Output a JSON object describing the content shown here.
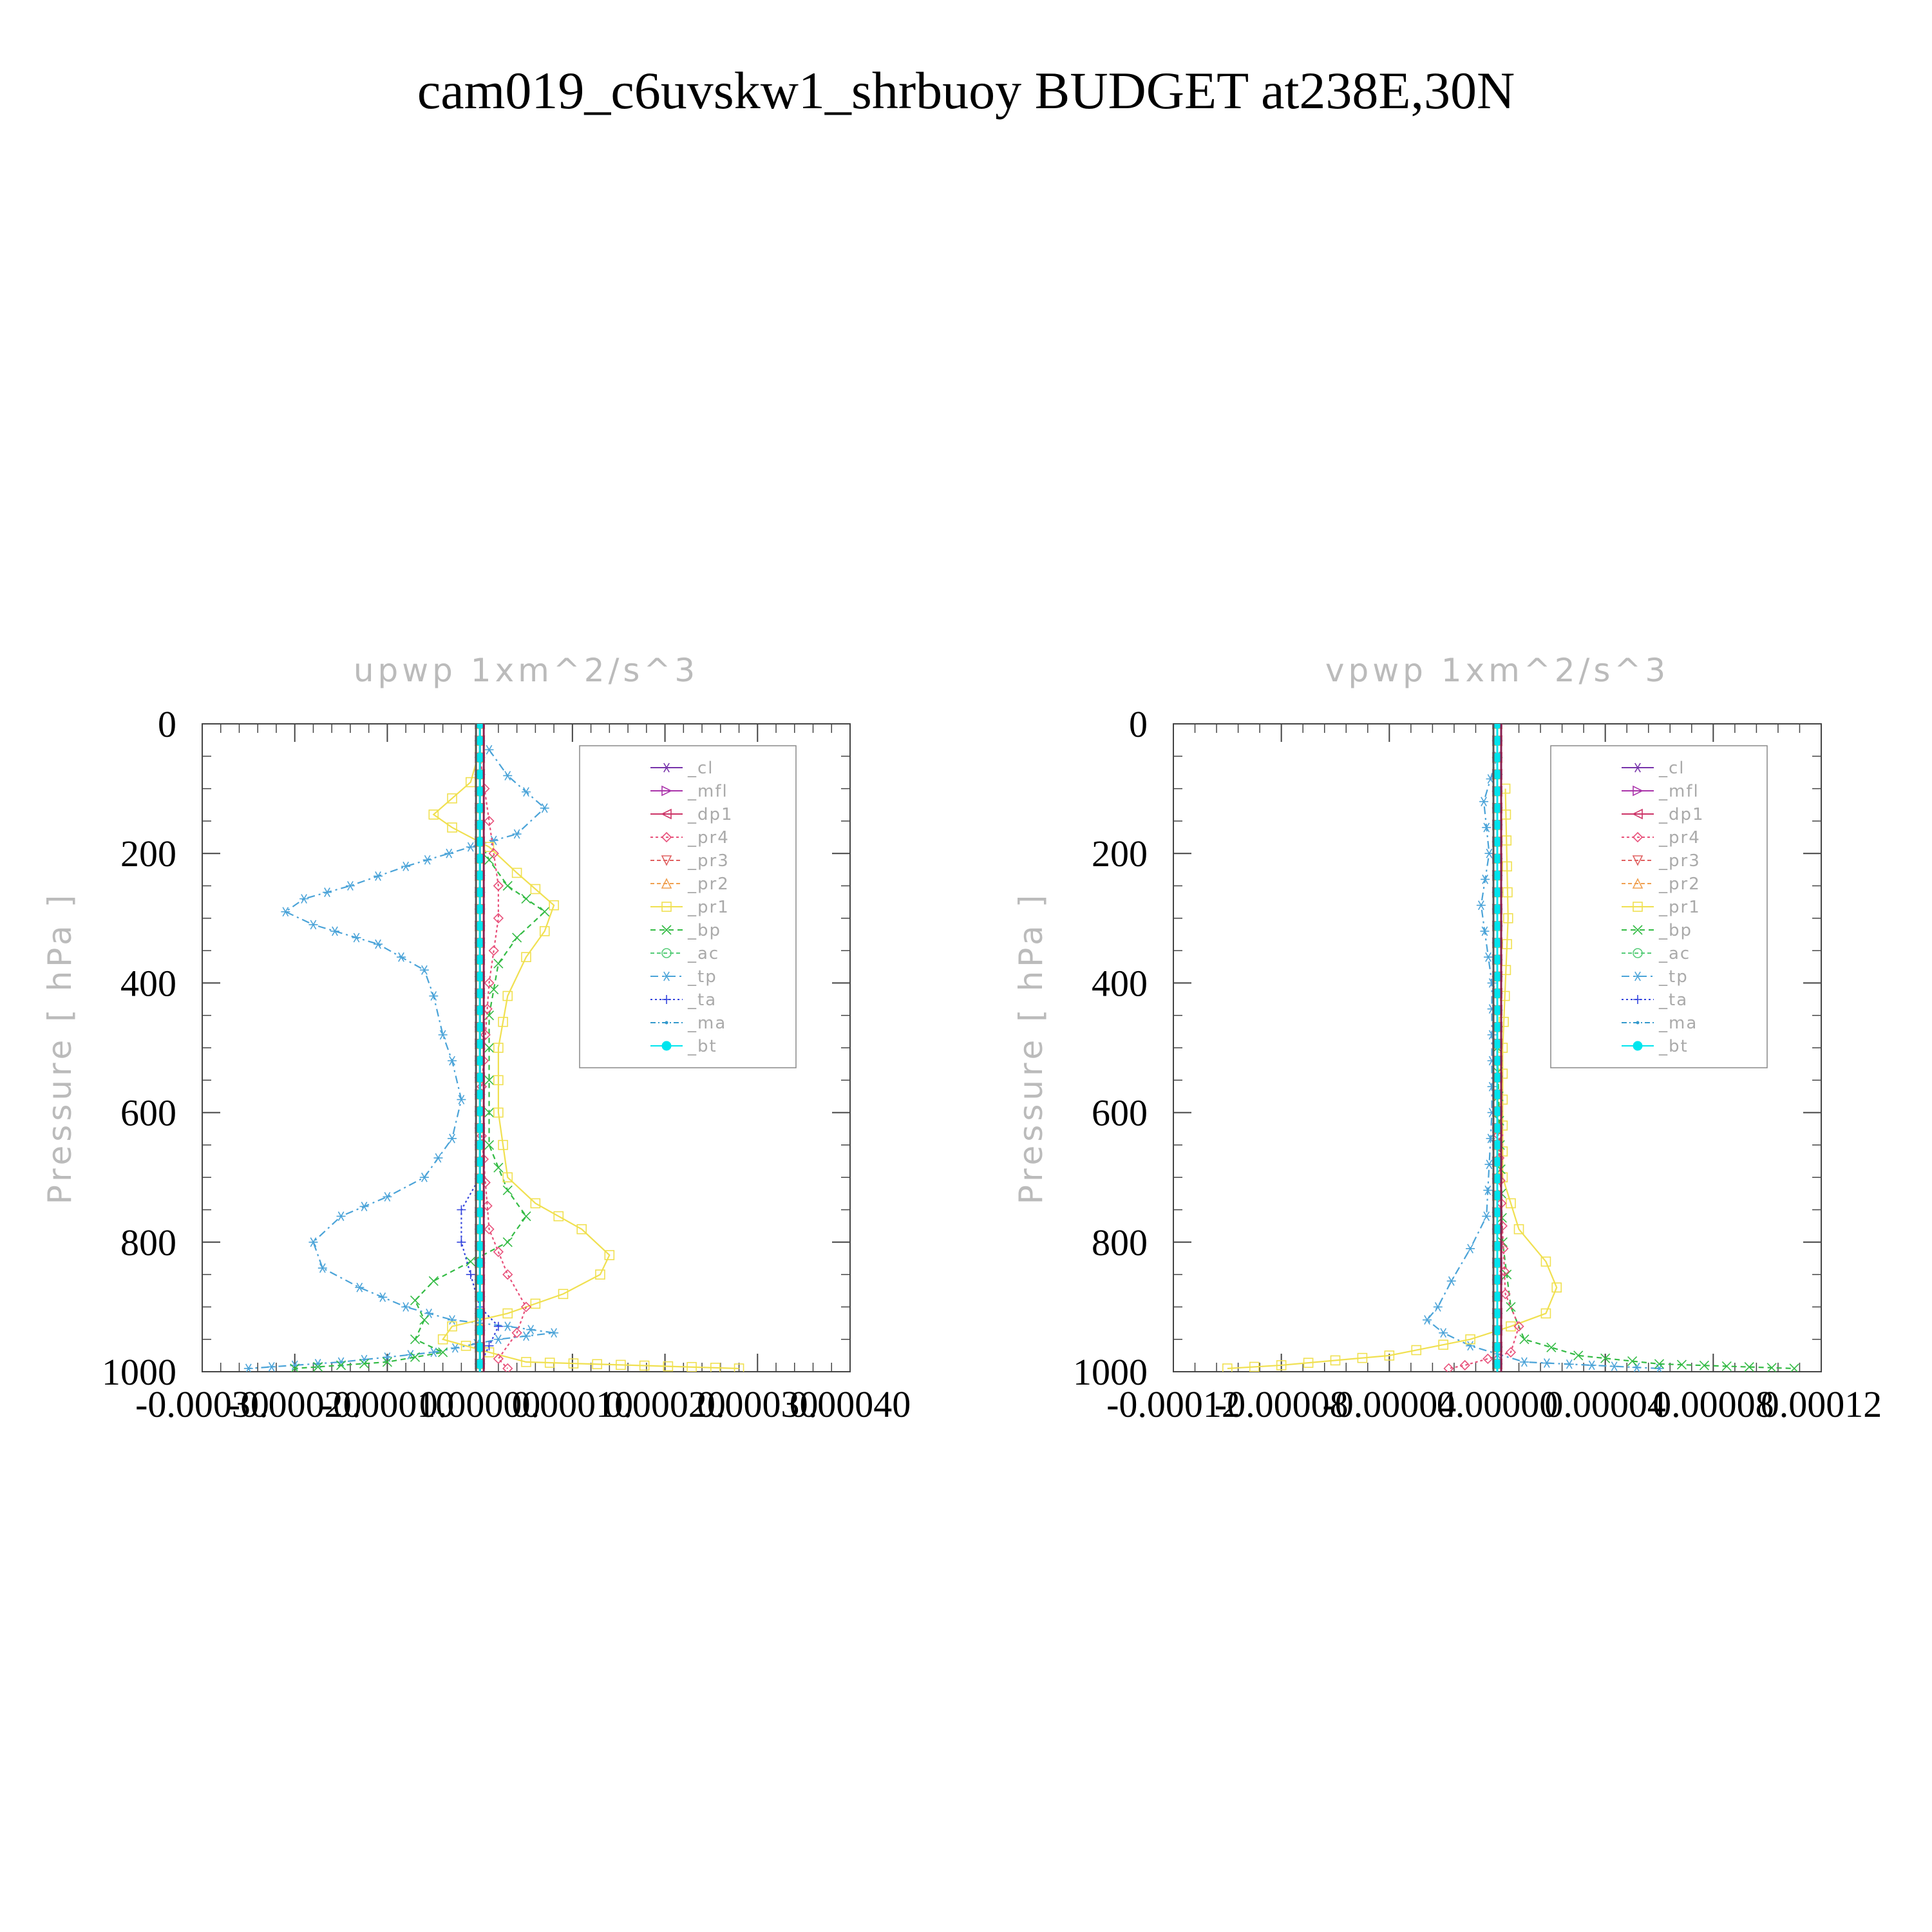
{
  "figure": {
    "title": "cam019_c6uvskw1_shrbuoy  BUDGET at238E,30N"
  },
  "chart_data": [
    {
      "type": "line",
      "title": "upwp    1xm^2/s^3",
      "ylabel": "Pressure  [ hPa ]",
      "xlabel": "",
      "xlim": [
        -0.0003,
        0.0004
      ],
      "ylim": [
        1000,
        0
      ],
      "xticks": [
        "-0.00030",
        "-0.00020",
        "-0.00010",
        "0.00000",
        "0.00010",
        "0.00020",
        "0.00030",
        "0.00040"
      ],
      "yticks": [
        "0",
        "200",
        "400",
        "600",
        "800",
        "1000"
      ],
      "legend": {
        "placement": "top-right",
        "entries": [
          "_cl",
          "_mfl",
          "_dp1",
          "_pr4",
          "_pr3",
          "_pr2",
          "_pr1",
          "_bp",
          "_ac",
          "_tp",
          "_ta",
          "_ma",
          "_bt"
        ]
      },
      "series": [
        {
          "name": "_tp",
          "color": "#4aa3d8",
          "marker": "asterisk",
          "dash": "12,6,3,6",
          "points": [
            [
              1e-05,
              40
            ],
            [
              3e-05,
              80
            ],
            [
              7e-05,
              130
            ],
            [
              4e-05,
              170
            ],
            [
              -1e-05,
              190
            ],
            [
              -8e-05,
              220
            ],
            [
              -0.00014,
              250
            ],
            [
              -0.00019,
              270
            ],
            [
              -0.00021,
              290
            ],
            [
              -0.00018,
              310
            ],
            [
              -0.00011,
              340
            ],
            [
              -6e-05,
              380
            ],
            [
              -5e-05,
              420
            ],
            [
              -4e-05,
              480
            ],
            [
              -3e-05,
              520
            ],
            [
              -2e-05,
              580
            ],
            [
              -3e-05,
              640
            ],
            [
              -6e-05,
              700
            ],
            [
              -0.0001,
              730
            ],
            [
              -0.00015,
              760
            ],
            [
              -0.00018,
              800
            ],
            [
              -0.00017,
              840
            ],
            [
              -0.00013,
              870
            ],
            [
              -8e-05,
              900
            ],
            [
              -3e-05,
              920
            ],
            [
              3e-05,
              930
            ],
            [
              8e-05,
              940
            ],
            [
              2e-05,
              950
            ],
            [
              -5e-05,
              970
            ],
            [
              -0.00015,
              985
            ],
            [
              -0.00025,
              995
            ]
          ]
        },
        {
          "name": "_bp",
          "color": "#33bb44",
          "marker": "x",
          "dash": "8,6",
          "points": [
            [
              0,
              180
            ],
            [
              1e-05,
              210
            ],
            [
              3e-05,
              250
            ],
            [
              7e-05,
              290
            ],
            [
              4e-05,
              330
            ],
            [
              2e-05,
              370
            ],
            [
              1e-05,
              450
            ],
            [
              1e-05,
              550
            ],
            [
              1e-05,
              650
            ],
            [
              3e-05,
              720
            ],
            [
              5e-05,
              760
            ],
            [
              3e-05,
              800
            ],
            [
              -1e-05,
              830
            ],
            [
              -5e-05,
              860
            ],
            [
              -7e-05,
              890
            ],
            [
              -6e-05,
              920
            ],
            [
              -7e-05,
              950
            ],
            [
              -4e-05,
              970
            ],
            [
              -0.0001,
              985
            ],
            [
              -0.0002,
              995
            ]
          ]
        },
        {
          "name": "_pr1",
          "color": "#f0e050",
          "marker": "square",
          "dash": "",
          "points": [
            [
              0,
              40
            ],
            [
              -1e-05,
              90
            ],
            [
              -5e-05,
              140
            ],
            [
              -3e-05,
              160
            ],
            [
              1e-05,
              190
            ],
            [
              4e-05,
              230
            ],
            [
              8e-05,
              280
            ],
            [
              7e-05,
              320
            ],
            [
              5e-05,
              360
            ],
            [
              3e-05,
              420
            ],
            [
              2e-05,
              500
            ],
            [
              2e-05,
              600
            ],
            [
              3e-05,
              700
            ],
            [
              6e-05,
              740
            ],
            [
              0.00011,
              780
            ],
            [
              0.00014,
              820
            ],
            [
              0.00013,
              850
            ],
            [
              9e-05,
              880
            ],
            [
              3e-05,
              910
            ],
            [
              -3e-05,
              930
            ],
            [
              -4e-05,
              950
            ],
            [
              1e-05,
              970
            ],
            [
              5e-05,
              985
            ],
            [
              0.00028,
              995
            ]
          ]
        },
        {
          "name": "_pr4",
          "color": "#e8507a",
          "marker": "diamond",
          "dash": "4,4",
          "points": [
            [
              0,
              50
            ],
            [
              1e-05,
              150
            ],
            [
              2e-05,
              250
            ],
            [
              2e-05,
              300
            ],
            [
              1e-05,
              400
            ],
            [
              0,
              600
            ],
            [
              1e-05,
              780
            ],
            [
              3e-05,
              850
            ],
            [
              5e-05,
              900
            ],
            [
              4e-05,
              940
            ],
            [
              2e-05,
              980
            ],
            [
              3e-05,
              995
            ]
          ]
        },
        {
          "name": "_ta",
          "color": "#3344dd",
          "marker": "plus",
          "dash": "3,4",
          "points": [
            [
              0,
              700
            ],
            [
              -2e-05,
              750
            ],
            [
              -2e-05,
              800
            ],
            [
              -1e-05,
              850
            ],
            [
              0,
              900
            ],
            [
              2e-05,
              930
            ],
            [
              1e-05,
              960
            ],
            [
              0,
              990
            ]
          ]
        },
        {
          "name": "_cl",
          "color": "#7733aa",
          "marker": "star",
          "dash": "",
          "points": [
            [
              0,
              0
            ],
            [
              0,
              1000
            ]
          ]
        },
        {
          "name": "_mfl",
          "color": "#aa33aa",
          "marker": "tri-right",
          "dash": "",
          "points": [
            [
              0,
              0
            ],
            [
              0,
              1000
            ]
          ]
        },
        {
          "name": "_dp1",
          "color": "#cc3366",
          "marker": "tri-left",
          "dash": "",
          "points": [
            [
              0,
              0
            ],
            [
              0,
              1000
            ]
          ]
        },
        {
          "name": "_pr3",
          "color": "#e06060",
          "marker": "tri-down",
          "dash": "6,4",
          "points": [
            [
              0,
              0
            ],
            [
              0,
              1000
            ]
          ]
        },
        {
          "name": "_pr2",
          "color": "#f0a050",
          "marker": "tri-up",
          "dash": "6,4",
          "points": [
            [
              0,
              0
            ],
            [
              0,
              1000
            ]
          ]
        },
        {
          "name": "_ac",
          "color": "#55cc77",
          "marker": "circle",
          "dash": "6,4",
          "points": [
            [
              0,
              0
            ],
            [
              0,
              1000
            ]
          ]
        },
        {
          "name": "_ma",
          "color": "#3399cc",
          "marker": "dot",
          "dash": "8,4,2,4",
          "points": [
            [
              0,
              0
            ],
            [
              0,
              1000
            ]
          ]
        },
        {
          "name": "_bt",
          "color": "#00e5ee",
          "marker": "filled-circle",
          "dash": "",
          "points": [
            [
              0,
              0
            ],
            [
              0,
              1000
            ]
          ]
        }
      ]
    },
    {
      "type": "line",
      "title": "vpwp    1xm^2/s^3",
      "ylabel": "Pressure  [ hPa ]",
      "xlabel": "",
      "xlim": [
        -0.00012,
        0.00012
      ],
      "ylim": [
        1000,
        0
      ],
      "xticks": [
        "-0.00012",
        "-0.00008",
        "-0.00004",
        "0.00000",
        "0.00004",
        "0.00008",
        "0.00012"
      ],
      "yticks": [
        "0",
        "200",
        "400",
        "600",
        "800",
        "1000"
      ],
      "legend": {
        "placement": "top-right",
        "entries": [
          "_cl",
          "_mfl",
          "_dp1",
          "_pr4",
          "_pr3",
          "_pr2",
          "_pr1",
          "_bp",
          "_ac",
          "_tp",
          "_ta",
          "_ma",
          "_bt"
        ]
      },
      "series": [
        {
          "name": "_tp",
          "color": "#4aa3d8",
          "marker": "asterisk",
          "dash": "12,6,3,6",
          "points": [
            [
              0,
              50
            ],
            [
              -5e-06,
              120
            ],
            [
              -3e-06,
              200
            ],
            [
              -6e-06,
              280
            ],
            [
              -2e-06,
              400
            ],
            [
              -2e-06,
              600
            ],
            [
              -4e-06,
              760
            ],
            [
              -1e-05,
              810
            ],
            [
              -1.7e-05,
              860
            ],
            [
              -2.2e-05,
              900
            ],
            [
              -2.6e-05,
              920
            ],
            [
              -2e-05,
              940
            ],
            [
              -1e-05,
              960
            ],
            [
              1e-05,
              985
            ],
            [
              6e-05,
              995
            ]
          ]
        },
        {
          "name": "_pr1",
          "color": "#f0e050",
          "marker": "square",
          "dash": "",
          "points": [
            [
              3e-06,
              100
            ],
            [
              4e-06,
              300
            ],
            [
              2e-06,
              500
            ],
            [
              2e-06,
              700
            ],
            [
              8e-06,
              780
            ],
            [
              1.8e-05,
              830
            ],
            [
              2.2e-05,
              870
            ],
            [
              1.8e-05,
              910
            ],
            [
              5e-06,
              930
            ],
            [
              -1e-05,
              950
            ],
            [
              -4e-05,
              975
            ],
            [
              -8e-05,
              990
            ],
            [
              -0.0001,
              995
            ]
          ]
        },
        {
          "name": "_bp",
          "color": "#33bb44",
          "marker": "x",
          "dash": "8,6",
          "points": [
            [
              0,
              500
            ],
            [
              2e-06,
              800
            ],
            [
              5e-06,
              900
            ],
            [
              1e-05,
              950
            ],
            [
              3e-05,
              975
            ],
            [
              6e-05,
              988
            ],
            [
              0.00011,
              995
            ]
          ]
        },
        {
          "name": "_pr4",
          "color": "#e8507a",
          "marker": "diamond",
          "dash": "4,4",
          "points": [
            [
              0,
              600
            ],
            [
              3e-06,
              880
            ],
            [
              8e-06,
              930
            ],
            [
              5e-06,
              970
            ],
            [
              -1.2e-05,
              990
            ],
            [
              -1.8e-05,
              995
            ]
          ]
        },
        {
          "name": "_cl",
          "color": "#7733aa",
          "marker": "star",
          "dash": "",
          "points": [
            [
              0,
              0
            ],
            [
              0,
              1000
            ]
          ]
        },
        {
          "name": "_mfl",
          "color": "#aa33aa",
          "marker": "tri-right",
          "dash": "",
          "points": [
            [
              0,
              0
            ],
            [
              0,
              1000
            ]
          ]
        },
        {
          "name": "_dp1",
          "color": "#cc3366",
          "marker": "tri-left",
          "dash": "",
          "points": [
            [
              0,
              0
            ],
            [
              0,
              1000
            ]
          ]
        },
        {
          "name": "_pr3",
          "color": "#e06060",
          "marker": "tri-down",
          "dash": "6,4",
          "points": [
            [
              0,
              0
            ],
            [
              0,
              1000
            ]
          ]
        },
        {
          "name": "_pr2",
          "color": "#f0a050",
          "marker": "tri-up",
          "dash": "6,4",
          "points": [
            [
              0,
              0
            ],
            [
              0,
              1000
            ]
          ]
        },
        {
          "name": "_ac",
          "color": "#55cc77",
          "marker": "circle",
          "dash": "6,4",
          "points": [
            [
              0,
              0
            ],
            [
              0,
              1000
            ]
          ]
        },
        {
          "name": "_ta",
          "color": "#3344dd",
          "marker": "plus",
          "dash": "3,4",
          "points": [
            [
              0,
              0
            ],
            [
              0,
              1000
            ]
          ]
        },
        {
          "name": "_ma",
          "color": "#3399cc",
          "marker": "dot",
          "dash": "8,4,2,4",
          "points": [
            [
              0,
              0
            ],
            [
              0,
              1000
            ]
          ]
        },
        {
          "name": "_bt",
          "color": "#00e5ee",
          "marker": "filled-circle",
          "dash": "",
          "points": [
            [
              0,
              0
            ],
            [
              0,
              1000
            ]
          ]
        }
      ]
    }
  ]
}
